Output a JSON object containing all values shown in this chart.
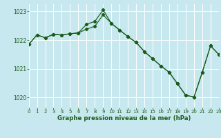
{
  "title": "Graphe pression niveau de la mer (hPa)",
  "bg_color": "#c8e8f0",
  "grid_color": "#ffffff",
  "line_color": "#1a5c1a",
  "xlim": [
    0,
    23
  ],
  "ylim": [
    1019.65,
    1023.25
  ],
  "yticks": [
    1020,
    1021,
    1022,
    1023
  ],
  "xticks": [
    0,
    1,
    2,
    3,
    4,
    5,
    6,
    7,
    8,
    9,
    10,
    11,
    12,
    13,
    14,
    15,
    16,
    17,
    18,
    19,
    20,
    21,
    22,
    23
  ],
  "line1": [
    1021.85,
    1022.18,
    1022.08,
    1022.2,
    1022.18,
    1022.22,
    1022.25,
    1022.55,
    1022.65,
    1023.05,
    1022.58,
    1022.35,
    1022.12,
    1021.92,
    1021.6,
    1021.35,
    1021.1,
    1020.88,
    1020.48,
    1020.08,
    1020.02,
    1020.88,
    1021.8,
    1021.5
  ],
  "line2": [
    1021.85,
    1022.18,
    1022.08,
    1022.2,
    1022.18,
    1022.22,
    1022.25,
    1022.38,
    1022.48,
    1022.88,
    1022.58,
    1022.35,
    1022.12,
    1021.92,
    1021.6,
    1021.35,
    1021.1,
    1020.88,
    1020.48,
    1020.08,
    1020.02,
    1020.88,
    1021.8,
    1021.5
  ]
}
